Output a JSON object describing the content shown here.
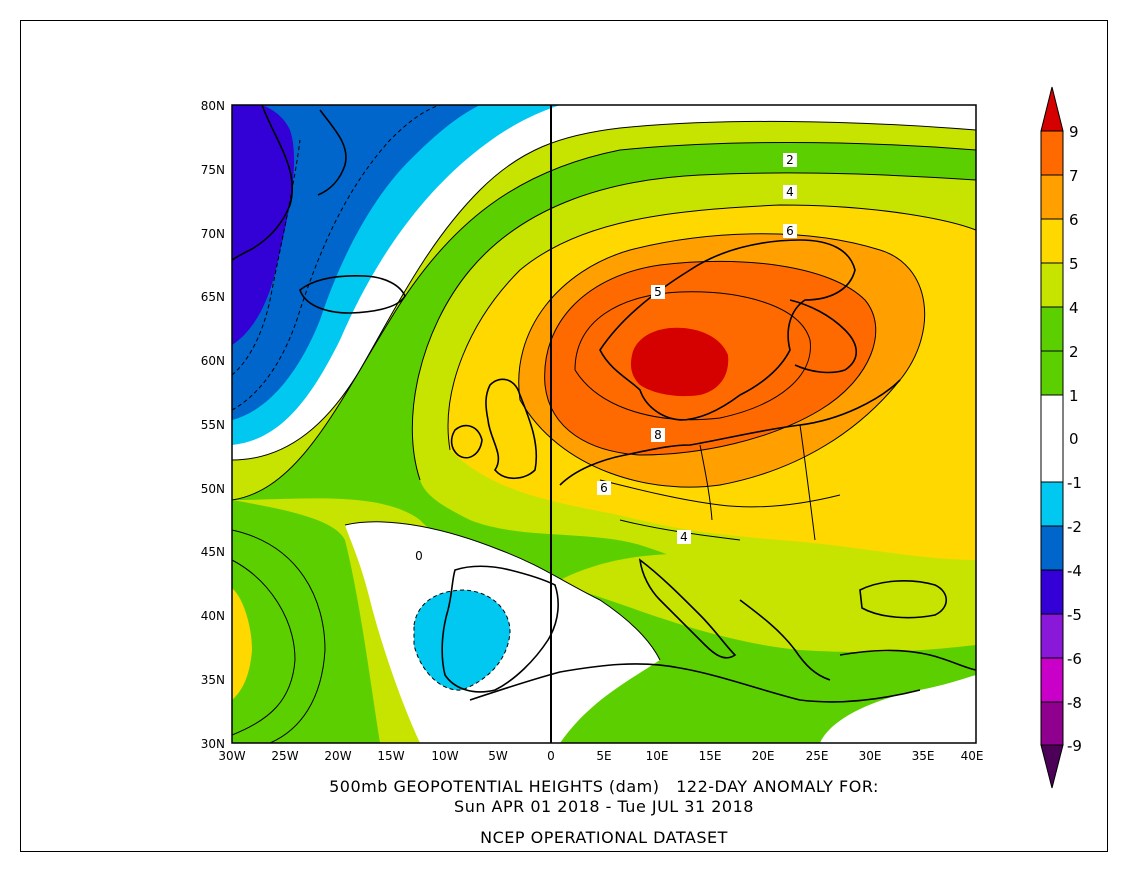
{
  "title": {
    "line1": "500mb GEOPOTENTIAL HEIGHTS (dam)   122-DAY ANOMALY FOR:",
    "line2": "Sun APR 01 2018 - Tue JUL 31 2018",
    "line3": "NCEP OPERATIONAL DATASET"
  },
  "lat_labels": [
    "80N",
    "75N",
    "70N",
    "65N",
    "60N",
    "55N",
    "50N",
    "45N",
    "40N",
    "35N",
    "30N"
  ],
  "lon_labels": [
    "30W",
    "25W",
    "20W",
    "15W",
    "10W",
    "5W",
    "0",
    "5E",
    "10E",
    "15E",
    "20E",
    "25E",
    "30E",
    "35E",
    "40E"
  ],
  "contour_labels": [
    "2",
    "4",
    "6",
    "5",
    "8",
    "6",
    "4",
    "0"
  ],
  "colorbar": {
    "labels": [
      "9",
      "7",
      "6",
      "5",
      "4",
      "2",
      "1",
      "0",
      "-1",
      "-2",
      "-4",
      "-5",
      "-6",
      "-8",
      "-9"
    ],
    "colors": [
      "#d50000",
      "#ff6a00",
      "#ffa000",
      "#ffd800",
      "#c7e400",
      "#5ccf00",
      "#ffffff",
      "#00c8f0",
      "#0066cc",
      "#3300d6",
      "#8a18d8",
      "#c800c8",
      "#90008e",
      "#4d0058"
    ]
  },
  "colors": {
    "c9": "#d50000",
    "c7": "#ff6a00",
    "c6": "#ffa000",
    "c5": "#ffd800",
    "c4": "#c7e400",
    "c2": "#5ccf00",
    "c0": "#ffffff",
    "cm1": "#00c8f0",
    "cm2": "#0066cc",
    "cm4": "#3300d6"
  }
}
